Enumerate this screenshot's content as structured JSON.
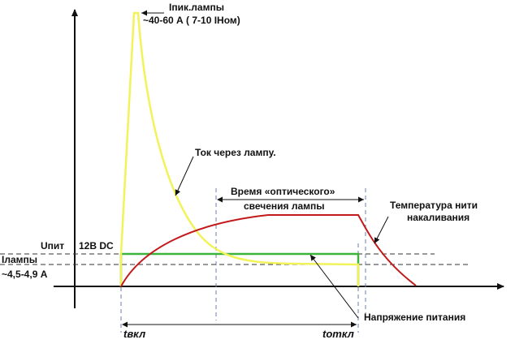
{
  "labels": {
    "peak_line1": "Iпик.лампы",
    "peak_line2": "~40-60 А ( 7-10 IНом)",
    "current": "Ток через лампу.",
    "glow_line1": "Время «оптического»",
    "glow_line2": "свечения лампы",
    "temp_line1": "Температура нити",
    "temp_line2": "накаливания",
    "upit": "Uпит",
    "dc": "12В DC",
    "ilamp_line1": "Iлампы",
    "ilamp_line2": "~4,5-4,9 А",
    "voltage": "Напряжение питания",
    "t_on": "tвкл",
    "t_off": "tоткл"
  },
  "colors": {
    "axes": "#111111",
    "current_curve": "#f2f25a",
    "voltage_line": "#3cb43c",
    "temperature_curve": "#c21a1a",
    "dashed_guides": "#333333",
    "blue_guides": "#6a7fae"
  }
}
